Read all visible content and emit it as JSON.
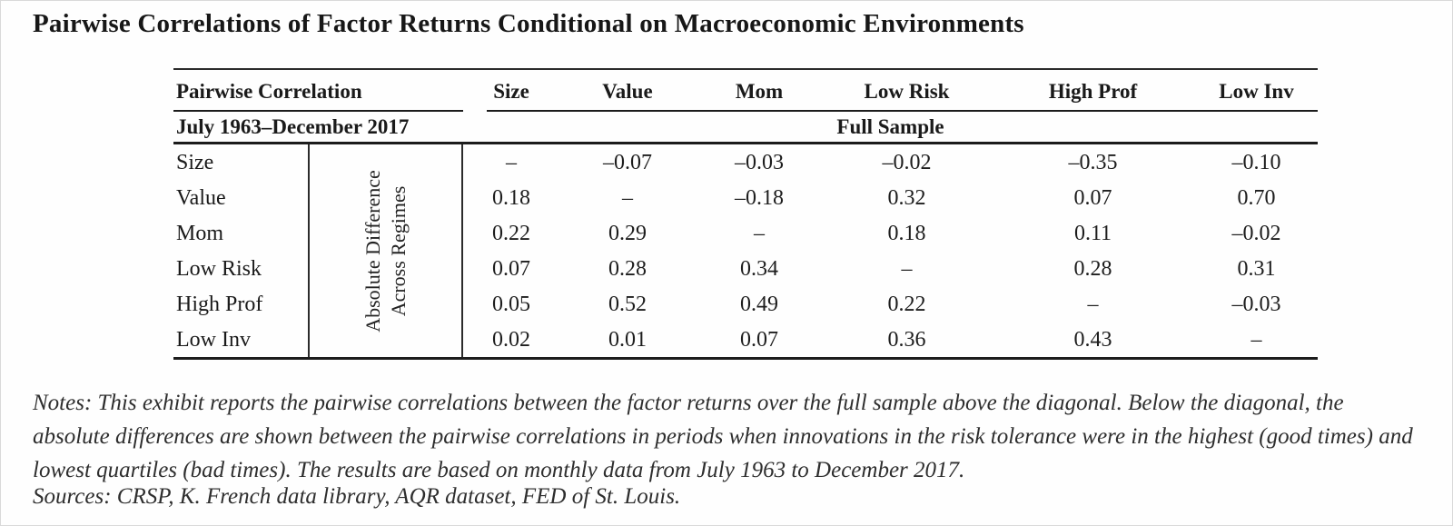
{
  "title": "Pairwise Correlations of Factor Returns Conditional on Macroeconomic Environments",
  "table": {
    "header": {
      "corner_label": "Pairwise Correlation",
      "period_label": "July 1963–December 2017",
      "sample_label": "Full Sample",
      "columns": [
        "Size",
        "Value",
        "Mom",
        "Low Risk",
        "High Prof",
        "Low Inv"
      ]
    },
    "rotated_label": {
      "line1": "Absolute Difference",
      "line2": "Across Regimes"
    },
    "rows": [
      {
        "label": "Size",
        "values": [
          "–",
          "–0.07",
          "–0.03",
          "–0.02",
          "–0.35",
          "–0.10"
        ]
      },
      {
        "label": "Value",
        "values": [
          "0.18",
          "–",
          "–0.18",
          "0.32",
          "0.07",
          "0.70"
        ]
      },
      {
        "label": "Mom",
        "values": [
          "0.22",
          "0.29",
          "–",
          "0.18",
          "0.11",
          "–0.02"
        ]
      },
      {
        "label": "Low Risk",
        "values": [
          "0.07",
          "0.28",
          "0.34",
          "–",
          "0.28",
          "0.31"
        ]
      },
      {
        "label": "High Prof",
        "values": [
          "0.05",
          "0.52",
          "0.49",
          "0.22",
          "–",
          "–0.03"
        ]
      },
      {
        "label": "Low Inv",
        "values": [
          "0.02",
          "0.01",
          "0.07",
          "0.36",
          "0.43",
          "–"
        ]
      }
    ]
  },
  "notes": "Notes: This exhibit reports the pairwise correlations between the factor returns over the full sample above the diagonal. Below the diagonal, the absolute differences are shown between the pairwise correlations in periods when innovations in the risk tolerance were in the highest (good times) and lowest quartiles (bad times). The results are based on monthly data from July 1963 to December 2017.",
  "sources": "Sources: CRSP, K. French data library, AQR dataset, FED of St. Louis."
}
